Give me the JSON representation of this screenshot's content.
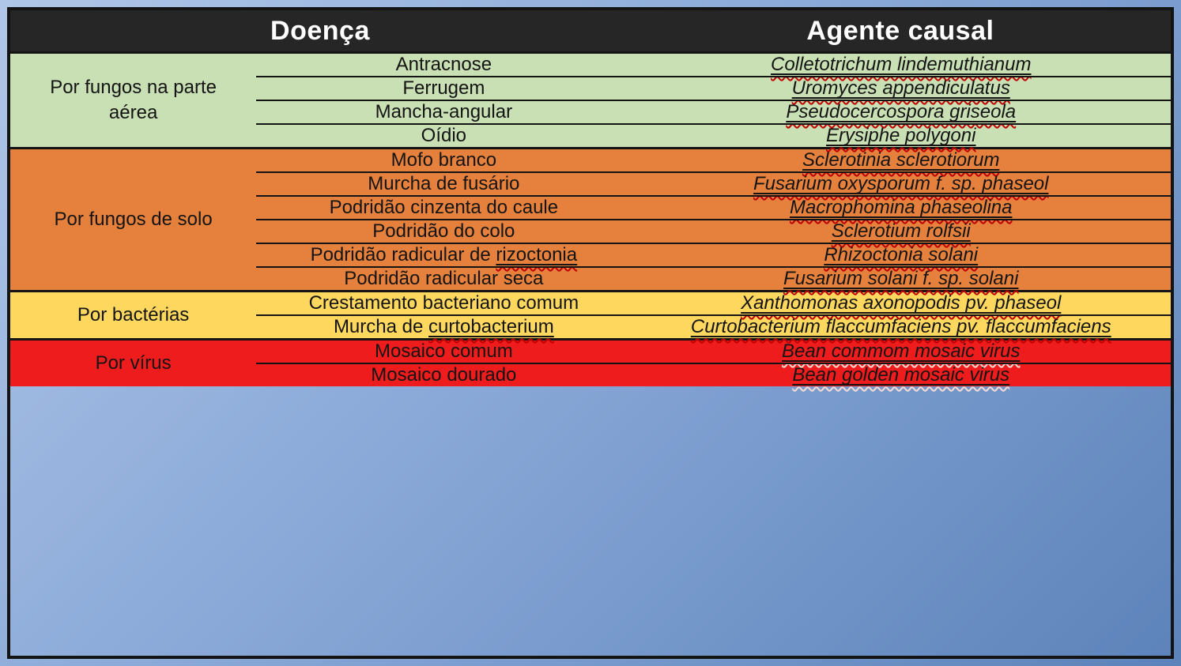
{
  "header": {
    "disease_label": "Doença",
    "agent_label": "Agente causal",
    "bg": "#262626",
    "text_color": "#ffffff"
  },
  "colors": {
    "frame_blue": "#84a3d2",
    "grid_black": "#141414",
    "spellcheck_red": "#c00000",
    "spellcheck_on_red": "#f5ddd3",
    "green_section": "#c9dfb4",
    "orange_section": "#e5813c",
    "yellow_section": "#fdd75e",
    "red_section": "#ee1c1c"
  },
  "sections": [
    {
      "category": "Por fungos na parte aérea",
      "bg": "#c9dfb4",
      "wavy_color": "#c00000",
      "rows": [
        {
          "disease": [
            {
              "t": "Antracnose"
            }
          ],
          "agent": "Colletotrichum lindemuthianum"
        },
        {
          "disease": [
            {
              "t": "Ferrugem"
            }
          ],
          "agent": "Uromyces appendiculatus"
        },
        {
          "disease": [
            {
              "t": "Mancha-angular"
            }
          ],
          "agent": "Pseudocercospora griseola"
        },
        {
          "disease": [
            {
              "t": "Oídio"
            }
          ],
          "agent": "Erysiphe polygoni"
        }
      ]
    },
    {
      "category": "Por fungos de solo",
      "bg": "#e5813c",
      "wavy_color": "#c00000",
      "rows": [
        {
          "disease": [
            {
              "t": "Mofo branco"
            }
          ],
          "agent": "Sclerotinia sclerotiorum"
        },
        {
          "disease": [
            {
              "t": "Murcha de fusário"
            }
          ],
          "agent": "Fusarium oxysporum f. sp. phaseol"
        },
        {
          "disease": [
            {
              "t": "Podridão cinzenta do caule"
            }
          ],
          "agent": "Macrophomina phaseolina"
        },
        {
          "disease": [
            {
              "t": "Podridão do colo"
            }
          ],
          "agent": "Sclerotium rolfsii"
        },
        {
          "disease": [
            {
              "t": "Podridão radicular de "
            },
            {
              "t": "rizoctonia",
              "u": true
            }
          ],
          "agent": "Rhizoctonia solani"
        },
        {
          "disease": [
            {
              "t": "Podridão radicular seca"
            }
          ],
          "agent": "Fusarium solani f. sp. solani"
        }
      ]
    },
    {
      "category": "Por bactérias",
      "bg": "#fdd75e",
      "wavy_color": "#c00000",
      "rows": [
        {
          "disease": [
            {
              "t": "Crestamento bacteriano comum"
            }
          ],
          "agent": "Xanthomonas axonopodis pv. phaseol"
        },
        {
          "disease": [
            {
              "t": "Murcha de "
            },
            {
              "t": "curtobacterium",
              "u": true
            }
          ],
          "agent": "Curtobacterium flaccumfaciens pv. flaccumfaciens"
        }
      ]
    },
    {
      "category": "Por vírus",
      "bg": "#ee1c1c",
      "wavy_color": "#f5ddd3",
      "rows": [
        {
          "disease": [
            {
              "t": "Mosaico comum"
            }
          ],
          "agent": "Bean commom mosaic virus"
        },
        {
          "disease": [
            {
              "t": "Mosaico dourado"
            }
          ],
          "agent": "Bean golden mosaic virus"
        }
      ]
    }
  ],
  "chart_data": {
    "type": "table",
    "title": "",
    "columns": [
      "Doença",
      "Agente causal"
    ],
    "groups": [
      {
        "group": "Por fungos na parte aérea",
        "rows": [
          [
            "Antracnose",
            "Colletotrichum lindemuthianum"
          ],
          [
            "Ferrugem",
            "Uromyces appendiculatus"
          ],
          [
            "Mancha-angular",
            "Pseudocercospora griseola"
          ],
          [
            "Oídio",
            "Erysiphe polygoni"
          ]
        ]
      },
      {
        "group": "Por fungos de solo",
        "rows": [
          [
            "Mofo branco",
            "Sclerotinia sclerotiorum"
          ],
          [
            "Murcha de fusário",
            "Fusarium oxysporum f. sp. phaseol"
          ],
          [
            "Podridão cinzenta do caule",
            "Macrophomina phaseolina"
          ],
          [
            "Podridão do colo",
            "Sclerotium rolfsii"
          ],
          [
            "Podridão radicular de rizoctonia",
            "Rhizoctonia solani"
          ],
          [
            "Podridão radicular seca",
            "Fusarium solani f. sp. solani"
          ]
        ]
      },
      {
        "group": "Por bactérias",
        "rows": [
          [
            "Crestamento bacteriano comum",
            "Xanthomonas axonopodis pv. phaseol"
          ],
          [
            "Murcha de curtobacterium",
            "Curtobacterium flaccumfaciens pv. flaccumfaciens"
          ]
        ]
      },
      {
        "group": "Por vírus",
        "rows": [
          [
            "Mosaico comum",
            "Bean commom mosaic virus"
          ],
          [
            "Mosaico dourado",
            "Bean golden mosaic virus"
          ]
        ]
      }
    ]
  }
}
